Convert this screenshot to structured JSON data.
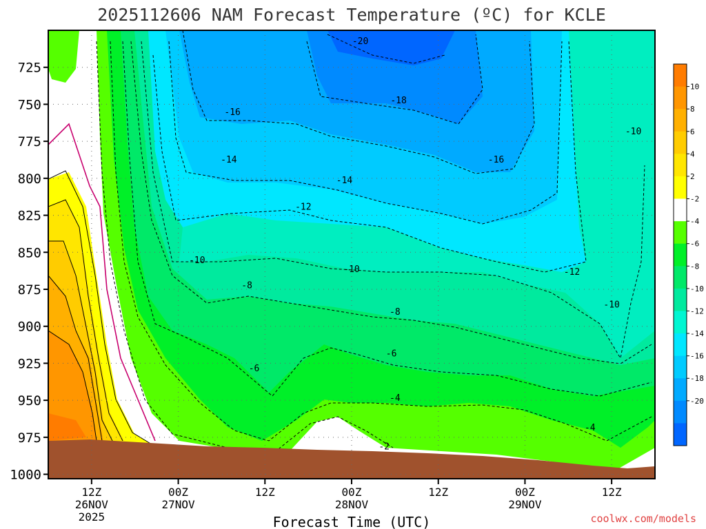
{
  "chart_data": {
    "type": "contour",
    "title": "2025112606 NAM Forecast Temperature (ºC) for KCLE",
    "xlabel": "Forecast Time (UTC)",
    "watermark": "coolwx.com/models",
    "x_ticks": [
      {
        "hours": 6,
        "line1": "12Z",
        "line2": "26NOV",
        "line3": "2025"
      },
      {
        "hours": 18,
        "line1": "00Z",
        "line2": "27NOV",
        "line3": ""
      },
      {
        "hours": 30,
        "line1": "12Z",
        "line2": "",
        "line3": ""
      },
      {
        "hours": 42,
        "line1": "00Z",
        "line2": "28NOV",
        "line3": ""
      },
      {
        "hours": 54,
        "line1": "12Z",
        "line2": "",
        "line3": ""
      },
      {
        "hours": 66,
        "line1": "00Z",
        "line2": "29NOV",
        "line3": ""
      },
      {
        "hours": 78,
        "line1": "12Z",
        "line2": "",
        "line3": ""
      }
    ],
    "x_range_hours": [
      0,
      84
    ],
    "y_ticks": [
      725,
      750,
      775,
      800,
      825,
      850,
      875,
      900,
      925,
      950,
      975,
      1000
    ],
    "ylim": [
      700,
      1003
    ],
    "y_inverted": true,
    "colorbar": {
      "levels": [
        12,
        10,
        8,
        6,
        4,
        2,
        -2,
        -4,
        -6,
        -8,
        -10,
        -12,
        -14,
        -16,
        -18,
        -20,
        -22
      ],
      "colors": [
        "#ff7c00",
        "#ff9600",
        "#ffb000",
        "#ffcc00",
        "#ffe600",
        "#ffff00",
        "#ffffff",
        "#55ff00",
        "#00f028",
        "#00e968",
        "#00ea9e",
        "#00f6d2",
        "#00e7ff",
        "#00cbff",
        "#00aaff",
        "#008aff",
        "#0066ff"
      ],
      "labels": [
        "10",
        "8",
        "6",
        "4",
        "2",
        "-2",
        "-4",
        "-6",
        "-8",
        "-10",
        "-12",
        "-14",
        "-16",
        "-18",
        "-20"
      ]
    },
    "contour_labels": [
      {
        "text": "-20",
        "hours": 43.2,
        "pressure": 707
      },
      {
        "text": "-18",
        "hours": 48.5,
        "pressure": 747
      },
      {
        "text": "-16",
        "hours": 25.5,
        "pressure": 755
      },
      {
        "text": "-16",
        "hours": 62.0,
        "pressure": 787
      },
      {
        "text": "-14",
        "hours": 25.0,
        "pressure": 787
      },
      {
        "text": "-14",
        "hours": 41.0,
        "pressure": 801
      },
      {
        "text": "-12",
        "hours": 35.3,
        "pressure": 819
      },
      {
        "text": "-12",
        "hours": 72.5,
        "pressure": 863
      },
      {
        "text": "-10",
        "hours": 81.0,
        "pressure": 768
      },
      {
        "text": "-10",
        "hours": 20.6,
        "pressure": 855
      },
      {
        "text": "-10",
        "hours": 42.0,
        "pressure": 861
      },
      {
        "text": "-10",
        "hours": 78.0,
        "pressure": 885
      },
      {
        "text": "-8",
        "hours": 27.5,
        "pressure": 872
      },
      {
        "text": "-8",
        "hours": 48.0,
        "pressure": 890
      },
      {
        "text": "-6",
        "hours": 28.5,
        "pressure": 928
      },
      {
        "text": "-6",
        "hours": 47.5,
        "pressure": 918
      },
      {
        "text": "-4",
        "hours": 48.0,
        "pressure": 948
      },
      {
        "text": "-4",
        "hours": 75.0,
        "pressure": 968
      },
      {
        "text": "-2",
        "hours": 46.5,
        "pressure": 981
      }
    ]
  }
}
